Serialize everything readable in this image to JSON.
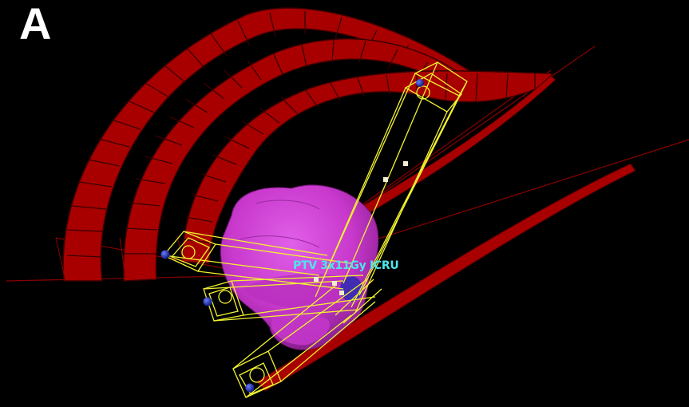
{
  "figure": {
    "panel_label": "A",
    "structure_label": "PTV 3x11Gy ICRU"
  },
  "colors": {
    "background": "#000000",
    "arc_fill": "#a80000",
    "arc_edge": "#3a0000",
    "beam_wire": "#f2f230",
    "target_volume": "#d040d8",
    "label_text": "#4ee6ea",
    "source_marker": "#1a2aa8"
  }
}
